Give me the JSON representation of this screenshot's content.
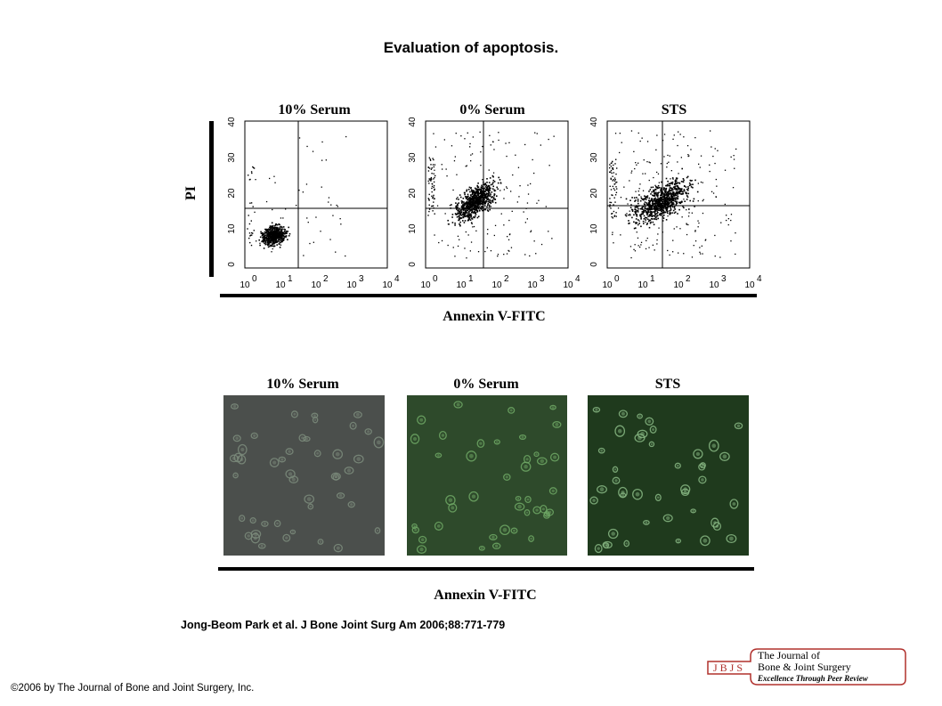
{
  "slide": {
    "title": "Evaluation of apoptosis.",
    "citation": "Jong-Beom Park et al. J Bone Joint Surg Am 2006;88:771-779",
    "copyright": "©2006 by The Journal of Bone and Joint Surgery, Inc."
  },
  "figure": {
    "flow_panels": [
      {
        "title": "10% Serum"
      },
      {
        "title": "0% Serum"
      },
      {
        "title": "STS"
      }
    ],
    "flow_y_axis_title": "PI",
    "flow_y_ticks": [
      "0",
      "10",
      "20",
      "30",
      "40"
    ],
    "flow_x_ticks": [
      "10",
      "10",
      "10",
      "10",
      "10"
    ],
    "flow_x_tick_exponents": [
      "0",
      "1",
      "2",
      "3",
      "4"
    ],
    "flow_x_axis_title": "Annexin V-FITC",
    "micro_panels": [
      {
        "title": "10% Serum",
        "base_color": "#4b4f4c",
        "cell_color": "#7d8c7c"
      },
      {
        "title": "0% Serum",
        "base_color": "#2e4a2b",
        "cell_color": "#6fa865"
      },
      {
        "title": "STS",
        "base_color": "#1f3a1d",
        "cell_color": "#88b884"
      }
    ],
    "micro_x_axis_title": "Annexin V-FITC"
  },
  "logo": {
    "badge": "JBJS",
    "line1": "The Journal of",
    "line2": "Bone & Joint Surgery",
    "tagline": "Excellence Through Peer Review",
    "color": "#b0302c"
  }
}
